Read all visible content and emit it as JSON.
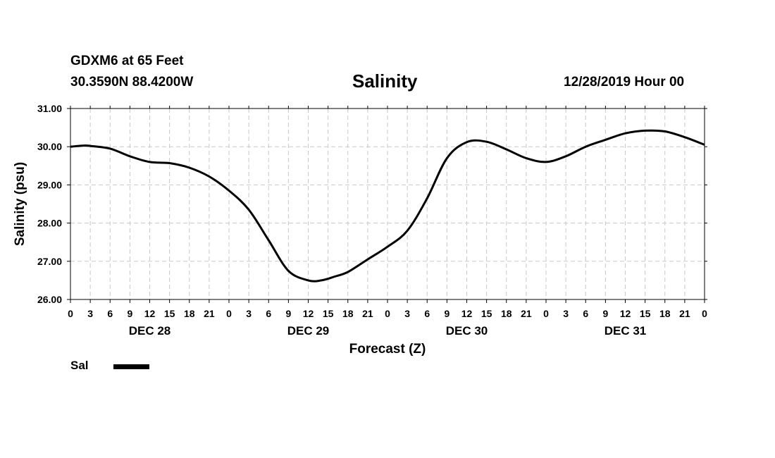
{
  "header": {
    "station": "GDXM6 at 65 Feet",
    "coordinates": "30.3590N 88.4200W",
    "title": "Salinity",
    "run_time": "12/28/2019 Hour 00"
  },
  "legend": {
    "series_label": "Sal"
  },
  "chart_data": {
    "type": "line",
    "title": "Salinity",
    "xlabel": "Forecast (Z)",
    "ylabel": "Salinity (psu)",
    "ylim": [
      26,
      31
    ],
    "xlim_hours": [
      0,
      96
    ],
    "grid": true,
    "legend_placement": "bottom-left",
    "y_ticks": [
      "26.00",
      "27.00",
      "28.00",
      "29.00",
      "30.00",
      "31.00"
    ],
    "x_tick_labels": [
      "0",
      "3",
      "6",
      "9",
      "12",
      "15",
      "18",
      "21",
      "0",
      "3",
      "6",
      "9",
      "12",
      "15",
      "18",
      "21",
      "0",
      "3",
      "6",
      "9",
      "12",
      "15",
      "18",
      "21",
      "0",
      "3",
      "6",
      "9",
      "12",
      "15",
      "18",
      "21",
      "0"
    ],
    "day_labels": [
      "DEC 28",
      "DEC 29",
      "DEC 30",
      "DEC 31"
    ],
    "series": [
      {
        "name": "Sal",
        "color": "#000000",
        "x": [
          0,
          2,
          3,
          6,
          9,
          12,
          15,
          18,
          21,
          24,
          27,
          30,
          33,
          36,
          38,
          40,
          42,
          45,
          48,
          51,
          54,
          57,
          60,
          63,
          66,
          69,
          72,
          75,
          78,
          81,
          84,
          87,
          90,
          93,
          96
        ],
        "y": [
          30.0,
          30.03,
          30.02,
          29.95,
          29.75,
          29.6,
          29.57,
          29.45,
          29.22,
          28.85,
          28.35,
          27.55,
          26.75,
          26.5,
          26.5,
          26.6,
          26.72,
          27.05,
          27.38,
          27.8,
          28.65,
          29.7,
          30.12,
          30.13,
          29.93,
          29.7,
          29.6,
          29.75,
          30.0,
          30.18,
          30.35,
          30.42,
          30.4,
          30.25,
          30.05
        ]
      }
    ]
  }
}
